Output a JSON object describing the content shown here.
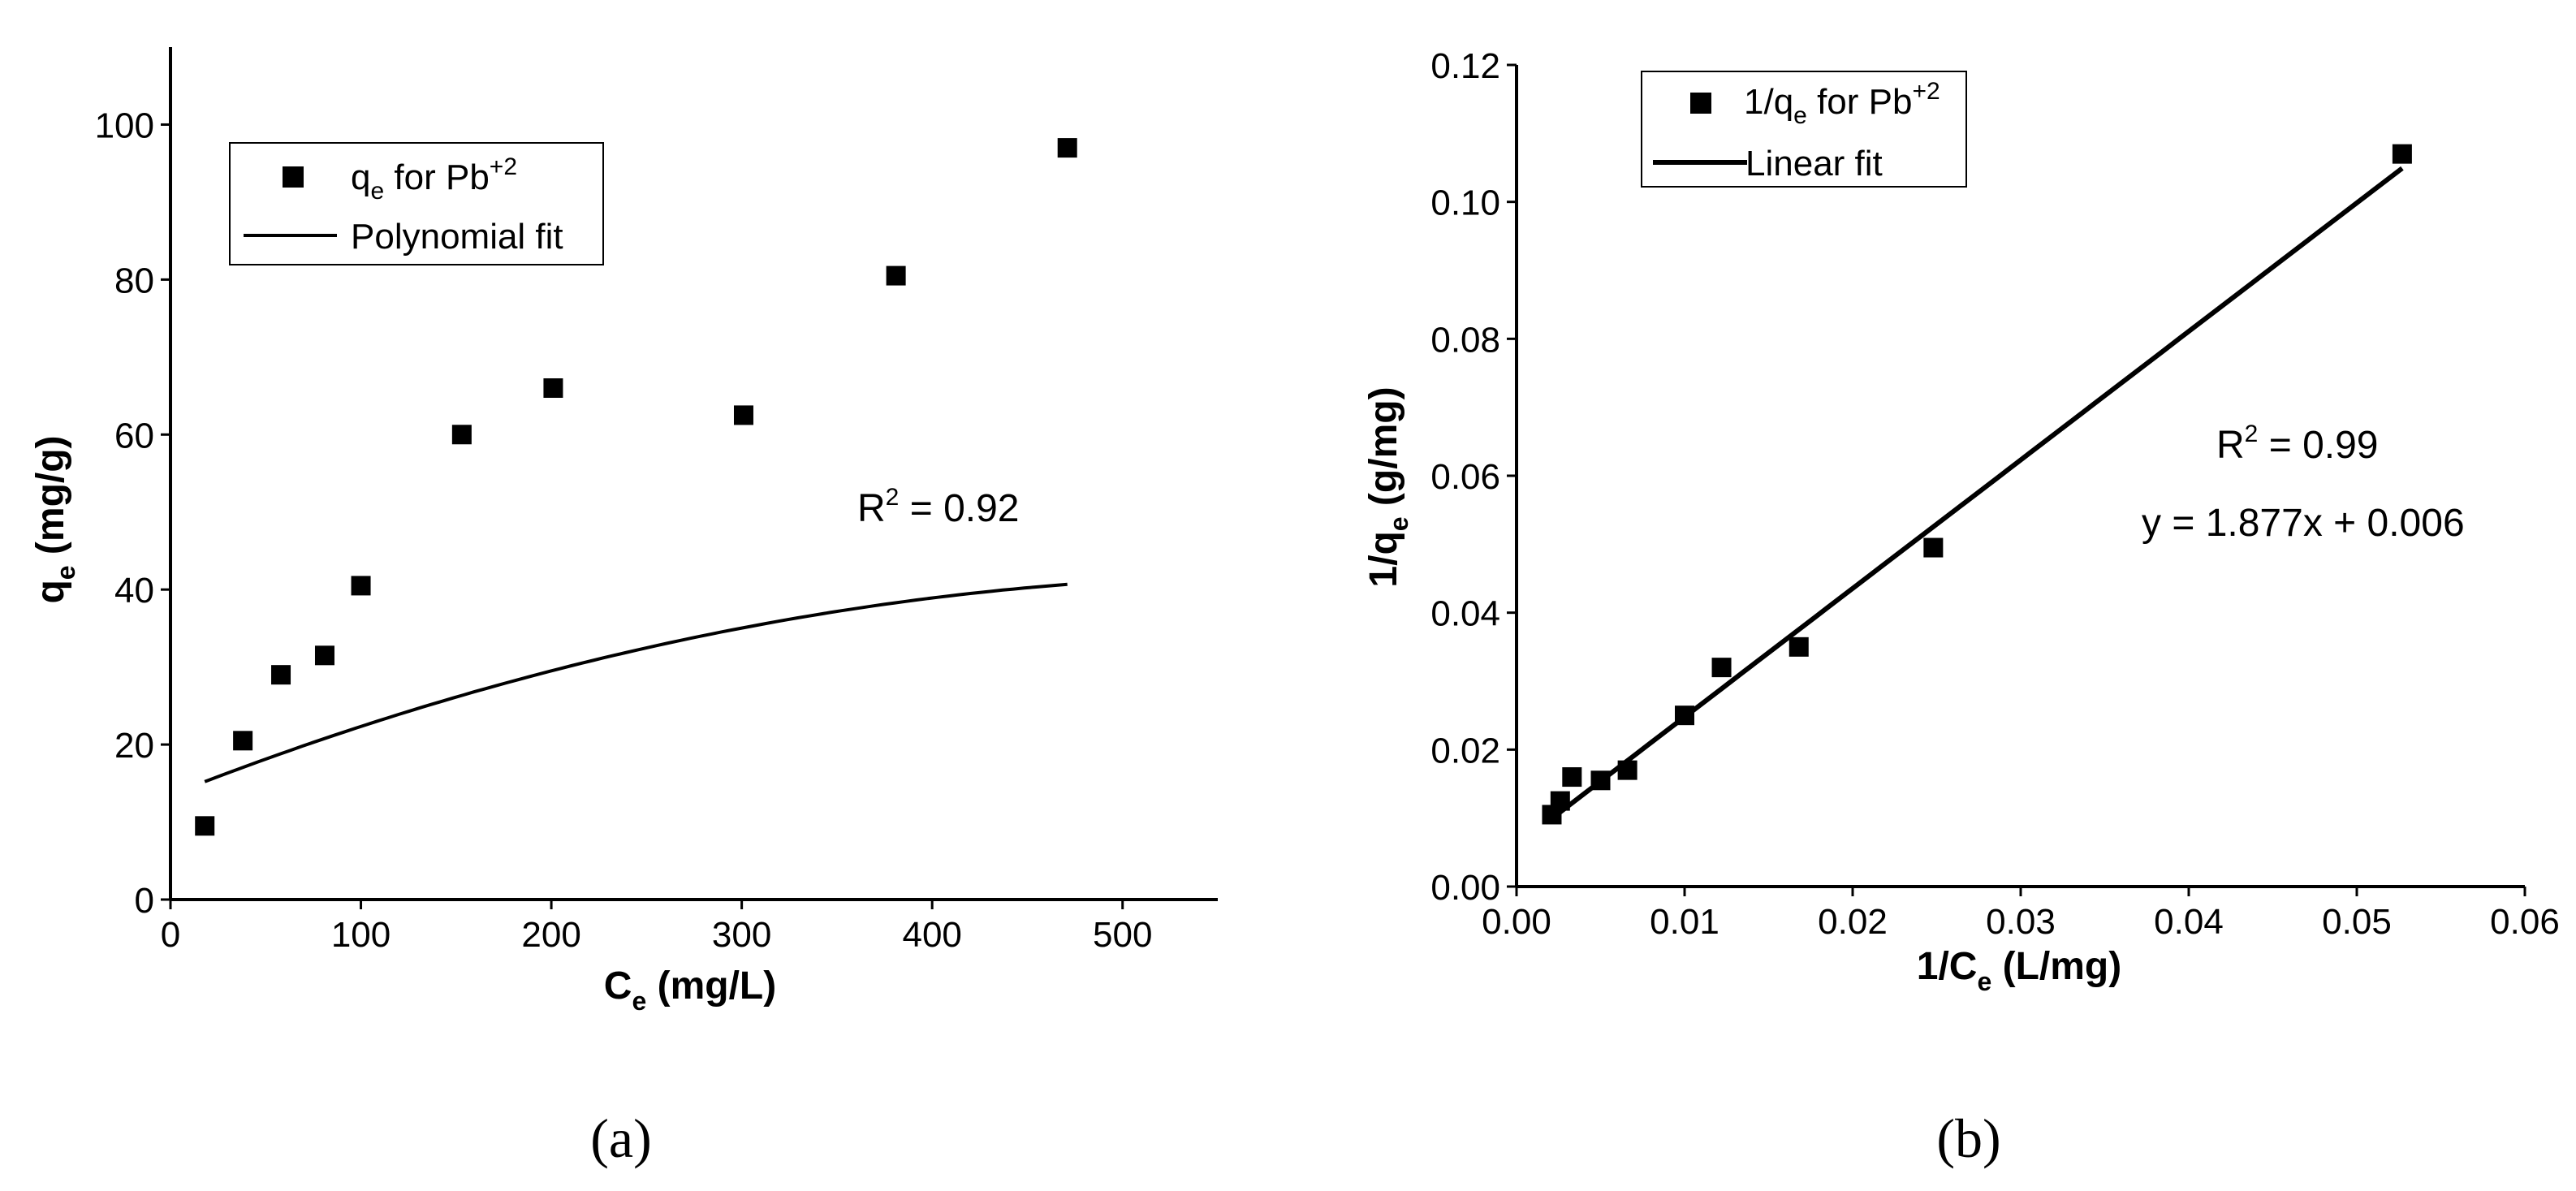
{
  "chart_data": [
    {
      "type": "scatter",
      "panel_label": "(a)",
      "xlabel": "C",
      "xlabel_sub": "e",
      "xlabel_rest": " (mg/L)",
      "ylabel": "q",
      "ylabel_sub": "e",
      "ylabel_rest": " (mg/g)",
      "xlim": [
        0,
        550
      ],
      "ylim": [
        0,
        110
      ],
      "xticks": [
        0,
        100,
        200,
        300,
        400,
        500
      ],
      "yticks": [
        0,
        20,
        40,
        60,
        80,
        100
      ],
      "xtick_labels": [
        "0",
        "100",
        "200",
        "300",
        "400",
        "500"
      ],
      "ytick_labels": [
        "0",
        "20",
        "40",
        "60",
        "80",
        "100"
      ],
      "series": [
        {
          "name": "q_e for Pb+2",
          "kind": "markers",
          "legend_main": "q",
          "legend_sub": "e",
          "legend_mid": " for Pb",
          "legend_sup": "+2",
          "x": [
            18,
            38,
            58,
            81,
            100,
            153,
            201,
            301,
            381,
            471
          ],
          "y": [
            9.5,
            20.5,
            29.0,
            31.5,
            40.5,
            60.0,
            66.0,
            62.5,
            80.5,
            97.0
          ]
        },
        {
          "name": "Polynomial fit",
          "kind": "line",
          "legend_main": "Polynomial fit",
          "fit": "quadratic",
          "coefficients": [
            13.5,
            0.09655,
            -8.254e-05
          ],
          "x_range": [
            18,
            471
          ]
        }
      ],
      "legend_position": "top-left",
      "annotations": [
        {
          "main": "R",
          "sup": "2",
          "rest": " = 0.92"
        }
      ]
    },
    {
      "type": "scatter",
      "panel_label": "(b)",
      "xlabel": "1/C",
      "xlabel_sub": "e",
      "xlabel_rest": " (L/mg)",
      "ylabel": "1/q",
      "ylabel_sub": "e",
      "ylabel_rest": " (g/mg)",
      "xlim": [
        0,
        0.06
      ],
      "ylim": [
        0,
        0.12
      ],
      "xticks": [
        0,
        0.01,
        0.02,
        0.03,
        0.04,
        0.05,
        0.06
      ],
      "yticks": [
        0,
        0.02,
        0.04,
        0.06,
        0.08,
        0.1,
        0.12
      ],
      "xtick_labels": [
        "0.00",
        "0.01",
        "0.02",
        "0.03",
        "0.04",
        "0.05",
        "0.06"
      ],
      "ytick_labels": [
        "0.00",
        "0.02",
        "0.04",
        "0.06",
        "0.08",
        "0.10",
        "0.12"
      ],
      "series": [
        {
          "name": "1/q_e for Pb+2",
          "kind": "markers",
          "legend_main": "1/q",
          "legend_sub": "e",
          "legend_mid": " for Pb",
          "legend_sup": "+2",
          "x": [
            0.0021,
            0.0026,
            0.0033,
            0.005,
            0.0066,
            0.01,
            0.0122,
            0.0168,
            0.0248,
            0.0527
          ],
          "y": [
            0.0105,
            0.0125,
            0.016,
            0.0155,
            0.017,
            0.025,
            0.032,
            0.035,
            0.0495,
            0.107
          ]
        },
        {
          "name": "Linear fit",
          "kind": "line",
          "legend_main": "Linear fit",
          "fit": "linear",
          "slope": 1.877,
          "intercept": 0.006,
          "x_range": [
            0.0021,
            0.0527
          ]
        }
      ],
      "legend_position": "top-left",
      "annotations": [
        {
          "main": "R",
          "sup": "2",
          "rest": " = 0.99"
        },
        {
          "text": "y = 1.877x + 0.006"
        }
      ]
    }
  ]
}
